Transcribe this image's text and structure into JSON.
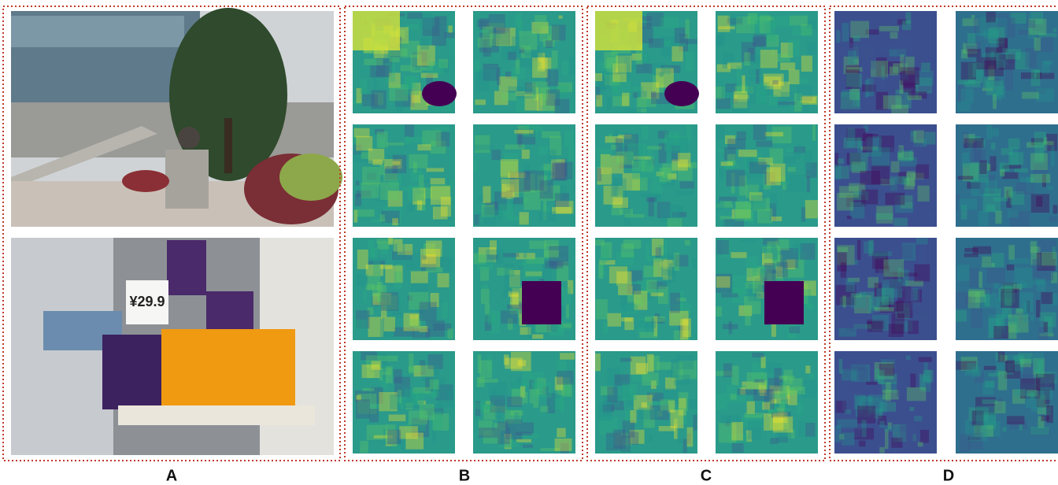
{
  "panels": [
    {
      "label": "A"
    },
    {
      "label": "B"
    },
    {
      "label": "C"
    },
    {
      "label": "D"
    }
  ],
  "photos": [
    {},
    {
      "sign": "¥29.9"
    }
  ]
}
